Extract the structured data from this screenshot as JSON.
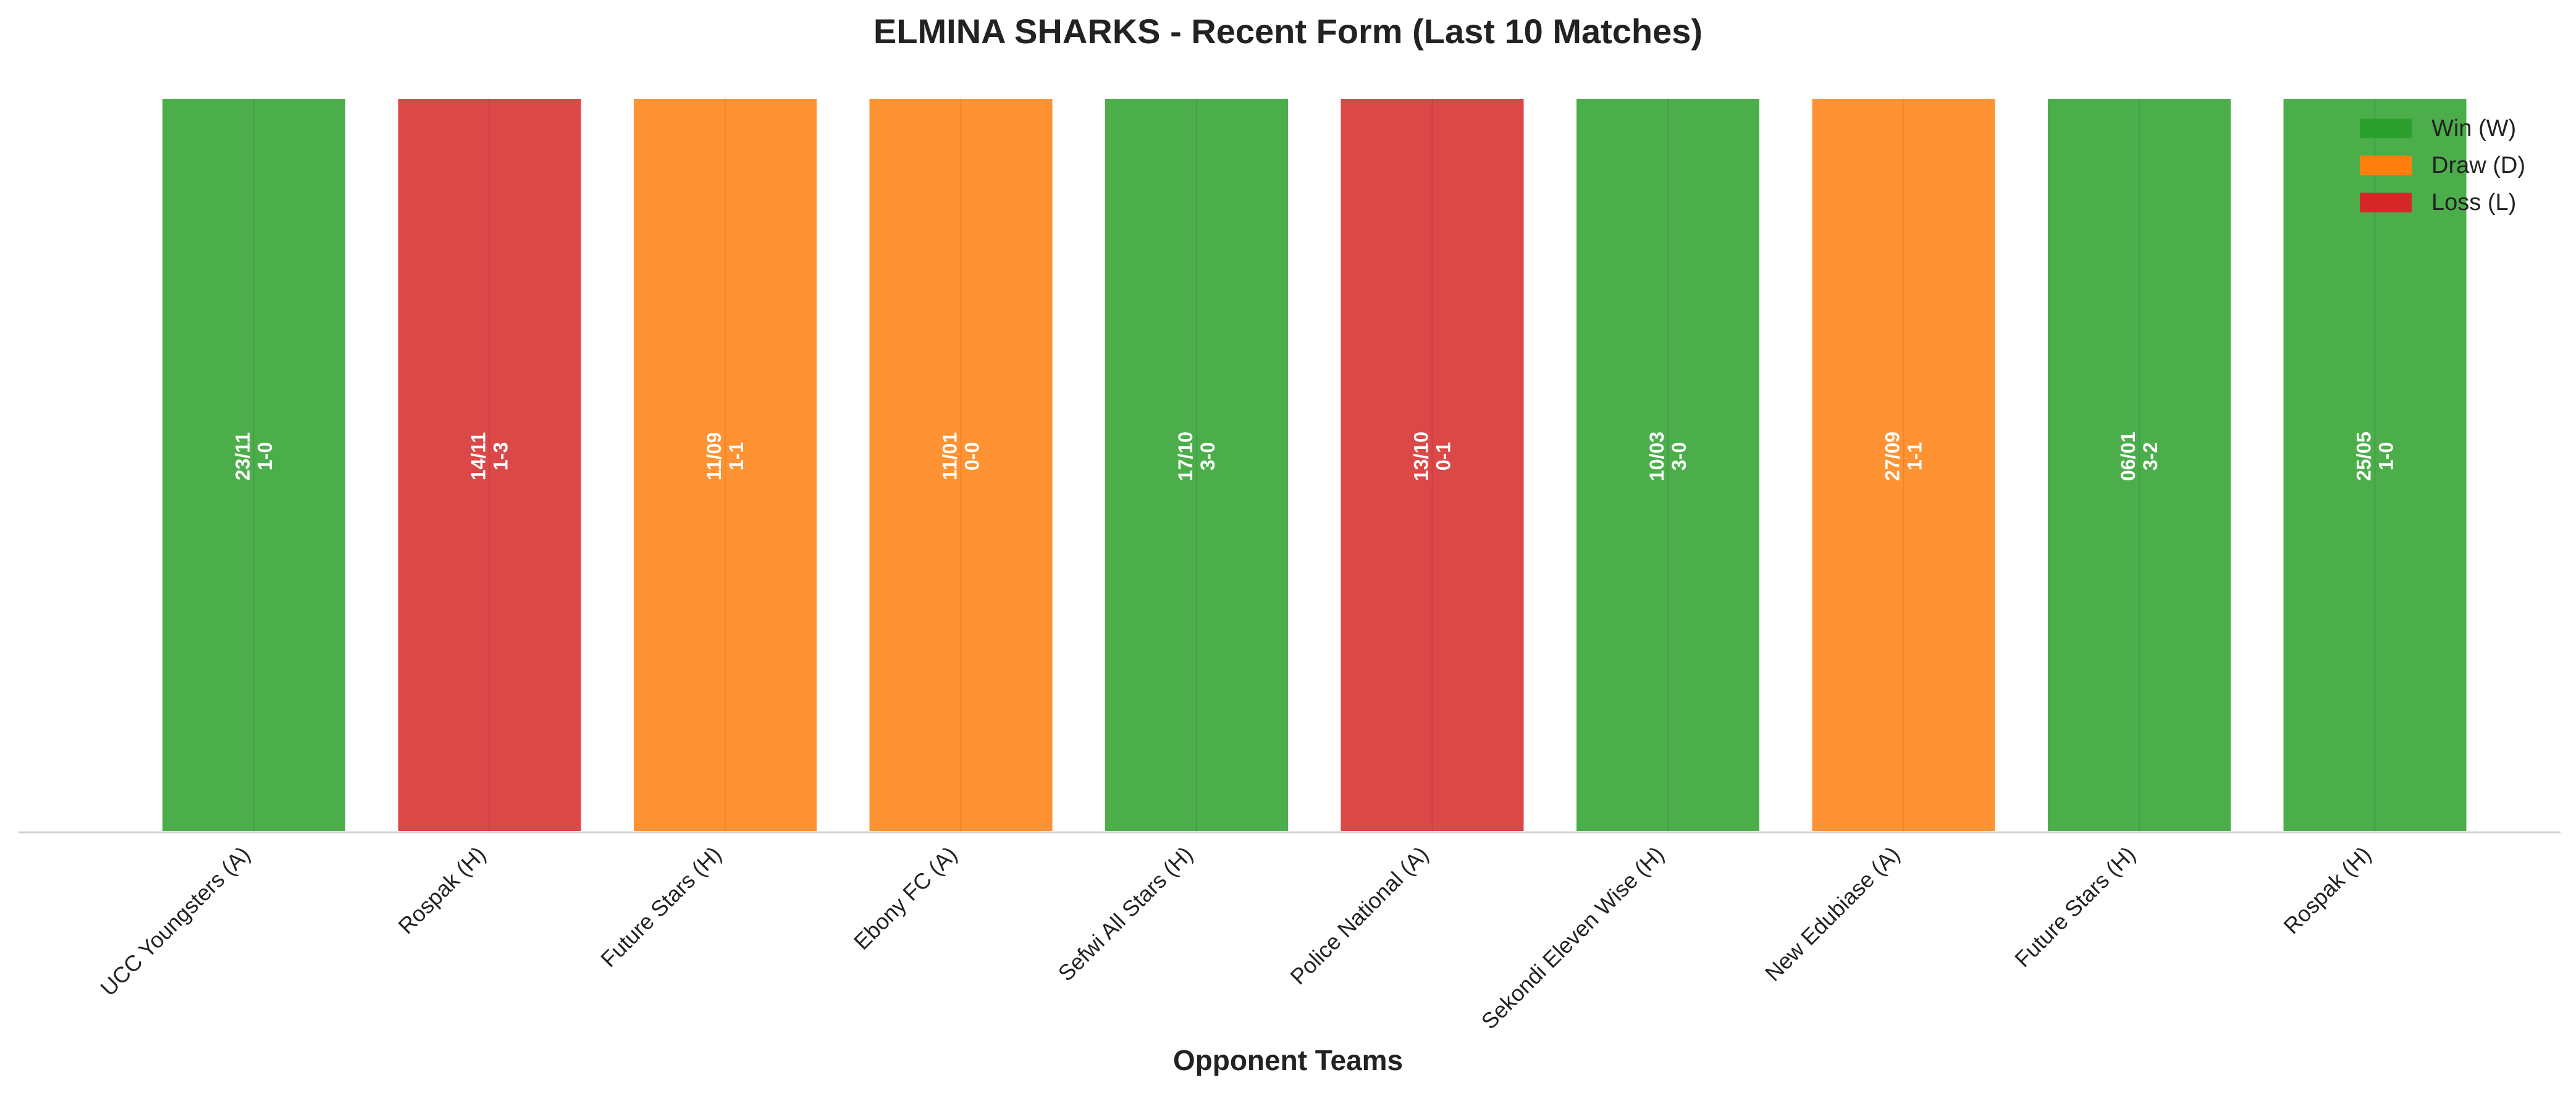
{
  "chart_data": {
    "type": "bar",
    "title": "ELMINA SHARKS - Recent Form (Last 10 Matches)",
    "xlabel": "Opponent Teams",
    "ylabel": "",
    "categories": [
      "UCC Youngsters (A)",
      "Rospak (H)",
      "Future Stars (H)",
      "Ebony FC (A)",
      "Sefwi All Stars (H)",
      "Police National (A)",
      "Sekondi Eleven Wise (H)",
      "New Edubiase (A)",
      "Future Stars (H)",
      "Rospak (H)"
    ],
    "values": [
      1,
      1,
      1,
      1,
      1,
      1,
      1,
      1,
      1,
      1
    ],
    "results": [
      "W",
      "L",
      "D",
      "D",
      "W",
      "L",
      "W",
      "D",
      "W",
      "W"
    ],
    "dates": [
      "23/11",
      "14/11",
      "11/09",
      "11/01",
      "17/10",
      "13/10",
      "10/03",
      "27/09",
      "06/01",
      "25/05"
    ],
    "scores": [
      "1-0",
      "1-3",
      "1-1",
      "0-0",
      "3-0",
      "0-1",
      "3-0",
      "1-1",
      "3-2",
      "1-0"
    ],
    "ylim": [
      0,
      1
    ],
    "grid": true,
    "legend_position": "top-right",
    "legend": [
      {
        "key": "W",
        "label": "Win (W)",
        "color": "#2ca02c"
      },
      {
        "key": "D",
        "label": "Draw (D)",
        "color": "#ff7f0e"
      },
      {
        "key": "L",
        "label": "Loss (L)",
        "color": "#d62728"
      }
    ]
  }
}
